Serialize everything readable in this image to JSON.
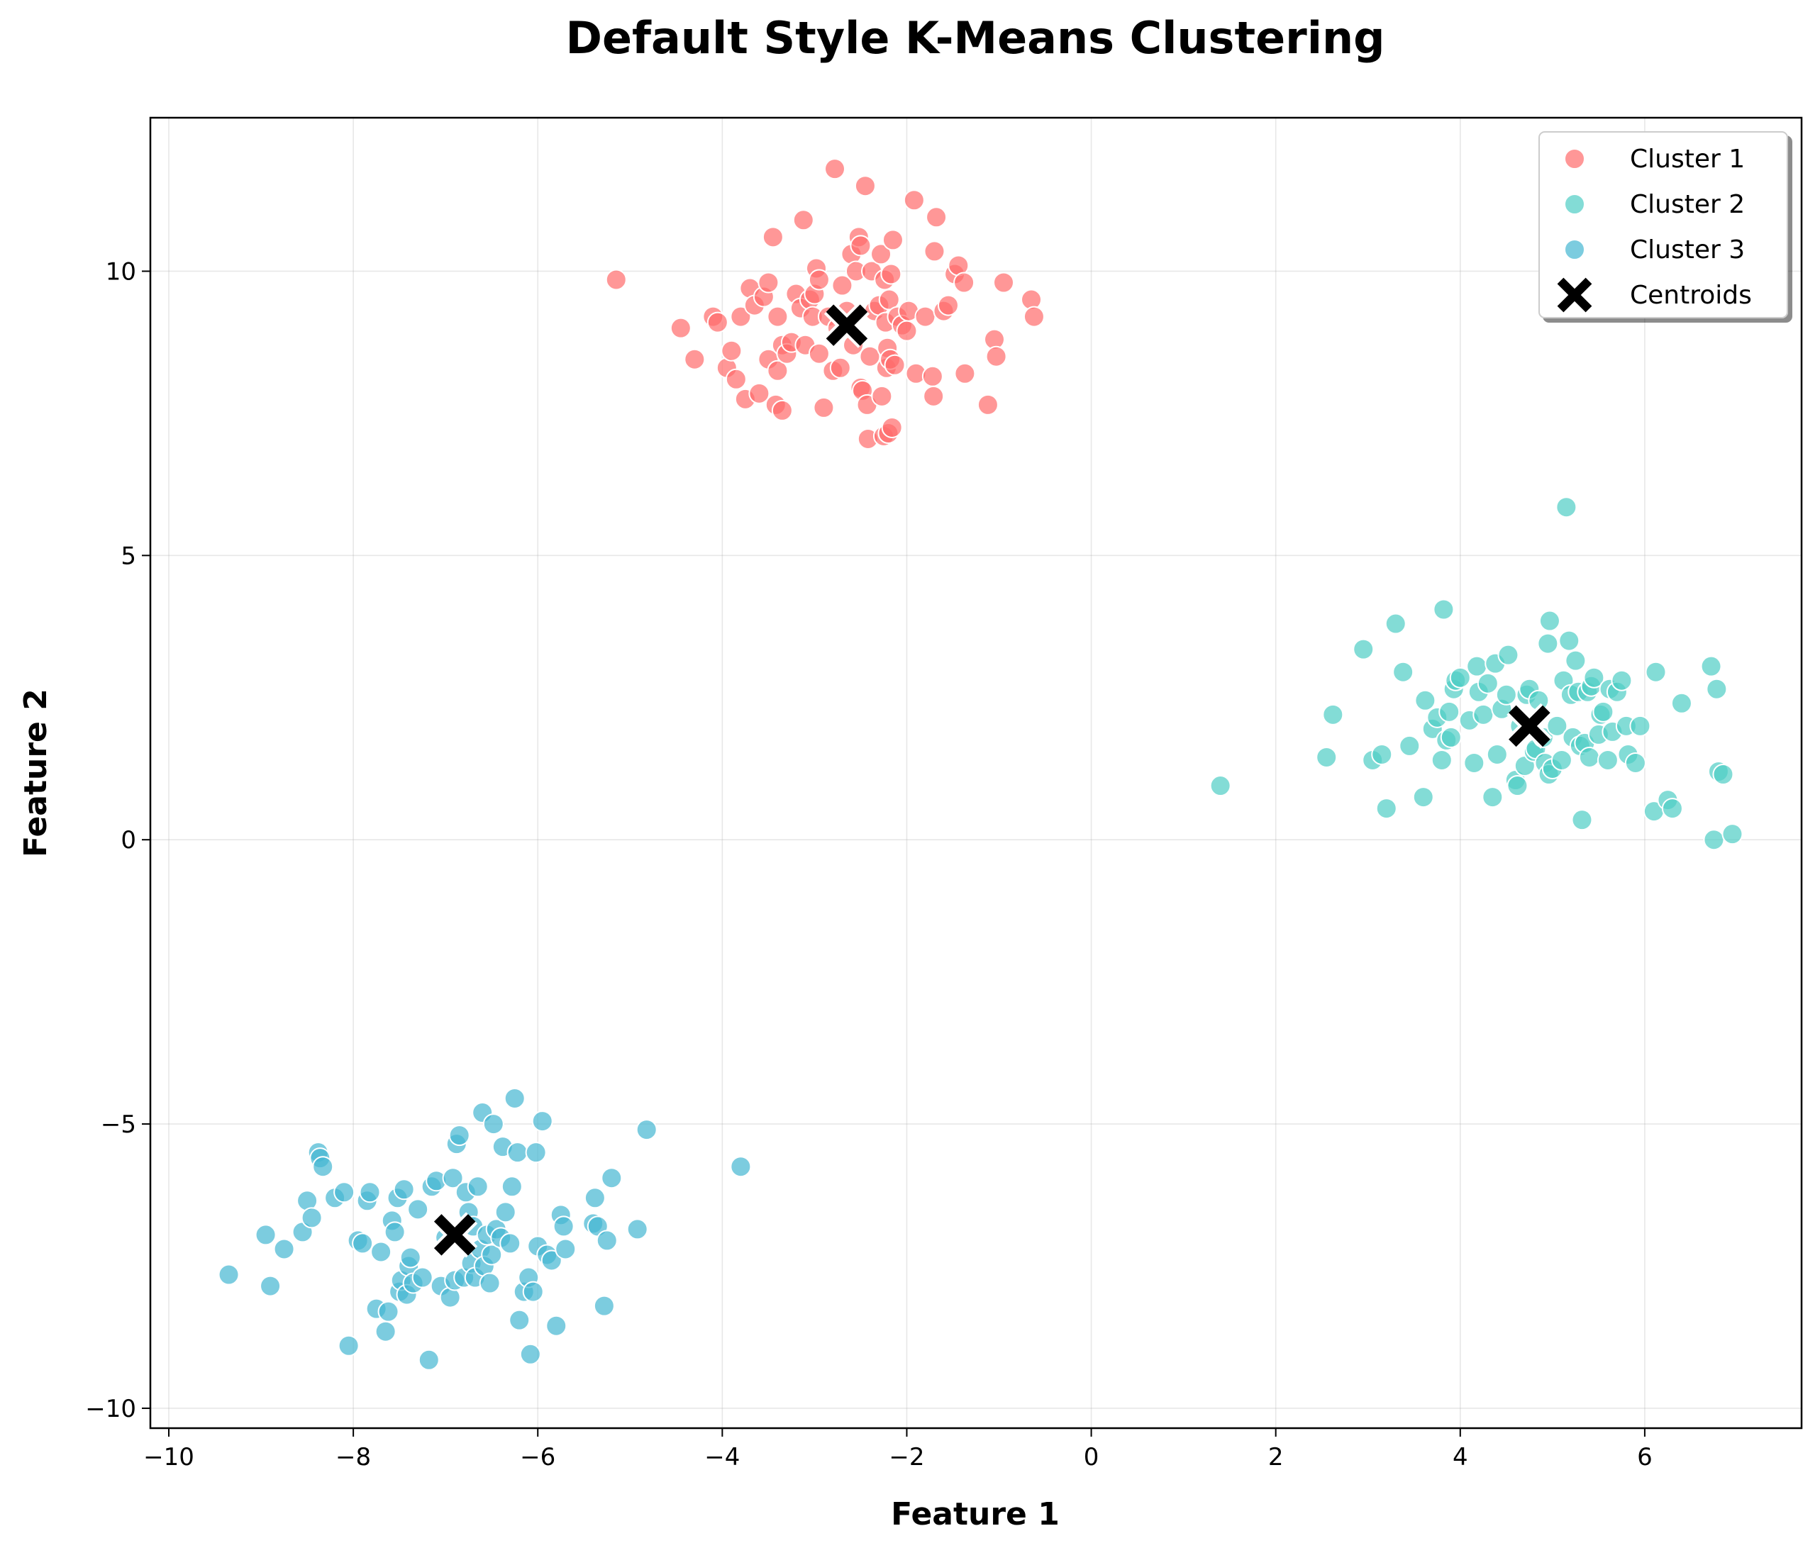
{
  "chart_data": {
    "type": "scatter",
    "title": "Default Style K-Means Clustering",
    "xlabel": "Feature 1",
    "ylabel": "Feature 2",
    "xlim": [
      -10.2,
      7.7
    ],
    "ylim": [
      -10.35,
      12.7
    ],
    "xticks": [
      -10,
      -8,
      -6,
      -4,
      -2,
      0,
      2,
      4,
      6
    ],
    "xtick_labels": [
      "−10",
      "−8",
      "−6",
      "−4",
      "−2",
      "0",
      "2",
      "4",
      "6"
    ],
    "yticks": [
      -10,
      -5,
      0,
      5,
      10
    ],
    "ytick_labels": [
      "−10",
      "−5",
      "0",
      "5",
      "10"
    ],
    "grid": true,
    "legend_position": "top-right",
    "series": [
      {
        "name": "Cluster 1",
        "color": "#ff6b6b",
        "points": [
          [
            -5.15,
            9.85
          ],
          [
            -4.45,
            9.0
          ],
          [
            -4.3,
            8.45
          ],
          [
            -4.1,
            9.2
          ],
          [
            -4.05,
            9.1
          ],
          [
            -3.95,
            8.3
          ],
          [
            -3.9,
            8.6
          ],
          [
            -3.85,
            8.1
          ],
          [
            -3.8,
            9.2
          ],
          [
            -3.75,
            7.75
          ],
          [
            -3.7,
            9.7
          ],
          [
            -3.65,
            9.4
          ],
          [
            -3.6,
            7.85
          ],
          [
            -3.55,
            9.55
          ],
          [
            -3.5,
            9.8
          ],
          [
            -3.5,
            8.45
          ],
          [
            -3.45,
            10.6
          ],
          [
            -3.42,
            7.65
          ],
          [
            -3.4,
            9.2
          ],
          [
            -3.4,
            8.25
          ],
          [
            -3.35,
            8.7
          ],
          [
            -3.35,
            7.55
          ],
          [
            -3.3,
            8.55
          ],
          [
            -3.25,
            8.75
          ],
          [
            -3.2,
            9.6
          ],
          [
            -3.15,
            9.35
          ],
          [
            -3.12,
            10.9
          ],
          [
            -3.1,
            8.7
          ],
          [
            -3.05,
            9.5
          ],
          [
            -3.02,
            9.2
          ],
          [
            -3.0,
            9.6
          ],
          [
            -2.98,
            10.05
          ],
          [
            -2.95,
            8.55
          ],
          [
            -2.95,
            9.85
          ],
          [
            -2.9,
            7.6
          ],
          [
            -2.85,
            9.2
          ],
          [
            -2.8,
            8.25
          ],
          [
            -2.78,
            11.8
          ],
          [
            -2.75,
            9.0
          ],
          [
            -2.72,
            8.3
          ],
          [
            -2.7,
            9.75
          ],
          [
            -2.65,
            9.3
          ],
          [
            -2.6,
            10.3
          ],
          [
            -2.58,
            8.7
          ],
          [
            -2.55,
            10.0
          ],
          [
            -2.52,
            10.6
          ],
          [
            -2.5,
            7.95
          ],
          [
            -2.5,
            10.45
          ],
          [
            -2.48,
            7.9
          ],
          [
            -2.45,
            11.5
          ],
          [
            -2.43,
            7.65
          ],
          [
            -2.42,
            7.05
          ],
          [
            -2.4,
            8.5
          ],
          [
            -2.38,
            10.0
          ],
          [
            -2.35,
            9.3
          ],
          [
            -2.3,
            9.4
          ],
          [
            -2.28,
            10.3
          ],
          [
            -2.27,
            7.8
          ],
          [
            -2.25,
            7.1
          ],
          [
            -2.24,
            9.85
          ],
          [
            -2.23,
            9.1
          ],
          [
            -2.22,
            8.3
          ],
          [
            -2.21,
            8.65
          ],
          [
            -2.2,
            7.15
          ],
          [
            -2.19,
            9.5
          ],
          [
            -2.18,
            8.45
          ],
          [
            -2.17,
            9.95
          ],
          [
            -2.16,
            7.25
          ],
          [
            -2.15,
            10.55
          ],
          [
            -2.13,
            8.35
          ],
          [
            -2.1,
            9.2
          ],
          [
            -2.05,
            9.05
          ],
          [
            -2.0,
            8.95
          ],
          [
            -1.98,
            9.3
          ],
          [
            -1.92,
            11.25
          ],
          [
            -1.9,
            8.2
          ],
          [
            -1.8,
            9.2
          ],
          [
            -1.72,
            8.15
          ],
          [
            -1.71,
            7.8
          ],
          [
            -1.7,
            10.35
          ],
          [
            -1.68,
            10.95
          ],
          [
            -1.6,
            9.3
          ],
          [
            -1.55,
            9.4
          ],
          [
            -1.48,
            9.95
          ],
          [
            -1.44,
            10.1
          ],
          [
            -1.38,
            9.8
          ],
          [
            -1.37,
            8.2
          ],
          [
            -1.12,
            7.65
          ],
          [
            -1.05,
            8.8
          ],
          [
            -1.03,
            8.5
          ],
          [
            -0.95,
            9.8
          ],
          [
            -0.65,
            9.5
          ],
          [
            -0.62,
            9.2
          ]
        ]
      },
      {
        "name": "Cluster 2",
        "color": "#4ecdc4",
        "points": [
          [
            1.4,
            0.95
          ],
          [
            2.55,
            1.45
          ],
          [
            2.62,
            2.2
          ],
          [
            2.95,
            3.35
          ],
          [
            3.05,
            1.4
          ],
          [
            3.15,
            1.5
          ],
          [
            3.2,
            0.55
          ],
          [
            3.3,
            3.8
          ],
          [
            3.38,
            2.95
          ],
          [
            3.45,
            1.65
          ],
          [
            3.6,
            0.75
          ],
          [
            3.62,
            2.45
          ],
          [
            3.7,
            1.95
          ],
          [
            3.75,
            2.15
          ],
          [
            3.8,
            1.4
          ],
          [
            3.82,
            4.05
          ],
          [
            3.85,
            1.75
          ],
          [
            3.88,
            2.25
          ],
          [
            3.9,
            1.8
          ],
          [
            3.93,
            2.65
          ],
          [
            3.95,
            2.8
          ],
          [
            4.0,
            2.85
          ],
          [
            4.1,
            2.1
          ],
          [
            4.15,
            1.35
          ],
          [
            4.18,
            3.05
          ],
          [
            4.2,
            2.6
          ],
          [
            4.25,
            2.2
          ],
          [
            4.3,
            2.75
          ],
          [
            4.35,
            0.75
          ],
          [
            4.38,
            3.1
          ],
          [
            4.4,
            1.5
          ],
          [
            4.45,
            2.3
          ],
          [
            4.5,
            2.55
          ],
          [
            4.52,
            3.25
          ],
          [
            4.6,
            1.05
          ],
          [
            4.62,
            0.95
          ],
          [
            4.65,
            2.0
          ],
          [
            4.7,
            1.3
          ],
          [
            4.72,
            2.55
          ],
          [
            4.75,
            2.65
          ],
          [
            4.8,
            1.55
          ],
          [
            4.82,
            1.6
          ],
          [
            4.85,
            2.45
          ],
          [
            4.9,
            1.8
          ],
          [
            4.92,
            1.35
          ],
          [
            4.95,
            3.45
          ],
          [
            4.96,
            1.15
          ],
          [
            4.97,
            3.85
          ],
          [
            5.0,
            1.25
          ],
          [
            5.05,
            2.0
          ],
          [
            5.1,
            1.4
          ],
          [
            5.12,
            2.8
          ],
          [
            5.15,
            5.85
          ],
          [
            5.18,
            3.5
          ],
          [
            5.2,
            2.55
          ],
          [
            5.22,
            1.8
          ],
          [
            5.25,
            3.15
          ],
          [
            5.28,
            2.6
          ],
          [
            5.3,
            1.65
          ],
          [
            5.32,
            0.35
          ],
          [
            5.35,
            1.7
          ],
          [
            5.38,
            2.6
          ],
          [
            5.4,
            1.45
          ],
          [
            5.42,
            2.7
          ],
          [
            5.45,
            2.85
          ],
          [
            5.5,
            1.85
          ],
          [
            5.52,
            2.2
          ],
          [
            5.55,
            2.25
          ],
          [
            5.6,
            1.4
          ],
          [
            5.62,
            2.65
          ],
          [
            5.65,
            1.9
          ],
          [
            5.7,
            2.6
          ],
          [
            5.75,
            2.8
          ],
          [
            5.8,
            2.0
          ],
          [
            5.82,
            1.5
          ],
          [
            5.9,
            1.35
          ],
          [
            5.95,
            2.0
          ],
          [
            6.1,
            0.5
          ],
          [
            6.12,
            2.95
          ],
          [
            6.25,
            0.7
          ],
          [
            6.3,
            0.55
          ],
          [
            6.4,
            2.4
          ],
          [
            6.72,
            3.05
          ],
          [
            6.75,
            0.0
          ],
          [
            6.78,
            2.65
          ],
          [
            6.8,
            1.2
          ],
          [
            6.85,
            1.15
          ],
          [
            6.95,
            0.1
          ]
        ]
      },
      {
        "name": "Cluster 3",
        "color": "#45b7d1",
        "points": [
          [
            -9.35,
            -7.65
          ],
          [
            -8.95,
            -6.95
          ],
          [
            -8.9,
            -7.85
          ],
          [
            -8.75,
            -7.2
          ],
          [
            -8.55,
            -6.9
          ],
          [
            -8.5,
            -6.35
          ],
          [
            -8.45,
            -6.65
          ],
          [
            -8.38,
            -5.5
          ],
          [
            -8.36,
            -5.6
          ],
          [
            -8.33,
            -5.75
          ],
          [
            -8.2,
            -6.3
          ],
          [
            -8.1,
            -6.2
          ],
          [
            -8.05,
            -8.9
          ],
          [
            -7.95,
            -7.05
          ],
          [
            -7.9,
            -7.1
          ],
          [
            -7.85,
            -6.35
          ],
          [
            -7.82,
            -6.2
          ],
          [
            -7.75,
            -8.25
          ],
          [
            -7.7,
            -7.25
          ],
          [
            -7.65,
            -8.65
          ],
          [
            -7.62,
            -8.3
          ],
          [
            -7.58,
            -6.7
          ],
          [
            -7.55,
            -6.9
          ],
          [
            -7.52,
            -6.3
          ],
          [
            -7.5,
            -7.95
          ],
          [
            -7.48,
            -7.75
          ],
          [
            -7.45,
            -6.15
          ],
          [
            -7.42,
            -8.0
          ],
          [
            -7.4,
            -7.5
          ],
          [
            -7.38,
            -7.35
          ],
          [
            -7.35,
            -7.8
          ],
          [
            -7.3,
            -6.5
          ],
          [
            -7.25,
            -7.7
          ],
          [
            -7.18,
            -9.15
          ],
          [
            -7.15,
            -6.1
          ],
          [
            -7.1,
            -6.0
          ],
          [
            -7.05,
            -7.85
          ],
          [
            -7.0,
            -7.0
          ],
          [
            -6.95,
            -8.05
          ],
          [
            -6.92,
            -5.95
          ],
          [
            -6.9,
            -7.75
          ],
          [
            -6.88,
            -5.35
          ],
          [
            -6.85,
            -5.2
          ],
          [
            -6.8,
            -7.7
          ],
          [
            -6.78,
            -6.2
          ],
          [
            -6.75,
            -6.55
          ],
          [
            -6.72,
            -7.45
          ],
          [
            -6.7,
            -6.8
          ],
          [
            -6.68,
            -7.7
          ],
          [
            -6.65,
            -6.1
          ],
          [
            -6.62,
            -7.2
          ],
          [
            -6.6,
            -4.8
          ],
          [
            -6.58,
            -7.5
          ],
          [
            -6.55,
            -6.95
          ],
          [
            -6.52,
            -7.8
          ],
          [
            -6.5,
            -7.3
          ],
          [
            -6.48,
            -5.0
          ],
          [
            -6.45,
            -6.85
          ],
          [
            -6.4,
            -7.0
          ],
          [
            -6.38,
            -5.4
          ],
          [
            -6.35,
            -6.55
          ],
          [
            -6.3,
            -7.1
          ],
          [
            -6.28,
            -6.1
          ],
          [
            -6.25,
            -4.55
          ],
          [
            -6.22,
            -5.5
          ],
          [
            -6.2,
            -8.45
          ],
          [
            -6.15,
            -7.95
          ],
          [
            -6.1,
            -7.7
          ],
          [
            -6.08,
            -9.05
          ],
          [
            -6.05,
            -7.95
          ],
          [
            -6.02,
            -5.5
          ],
          [
            -6.0,
            -7.15
          ],
          [
            -5.95,
            -4.95
          ],
          [
            -5.9,
            -7.3
          ],
          [
            -5.85,
            -7.4
          ],
          [
            -5.8,
            -8.55
          ],
          [
            -5.75,
            -6.6
          ],
          [
            -5.72,
            -6.8
          ],
          [
            -5.7,
            -7.2
          ],
          [
            -5.4,
            -6.75
          ],
          [
            -5.38,
            -6.3
          ],
          [
            -5.35,
            -6.8
          ],
          [
            -5.28,
            -8.2
          ],
          [
            -5.25,
            -7.05
          ],
          [
            -5.2,
            -5.95
          ],
          [
            -4.92,
            -6.85
          ],
          [
            -4.82,
            -5.1
          ],
          [
            -3.8,
            -5.75
          ]
        ]
      }
    ],
    "centroids": {
      "name": "Centroids",
      "points": [
        [
          -2.65,
          9.05
        ],
        [
          4.75,
          2.0
        ],
        [
          -6.9,
          -6.95
        ]
      ]
    }
  }
}
